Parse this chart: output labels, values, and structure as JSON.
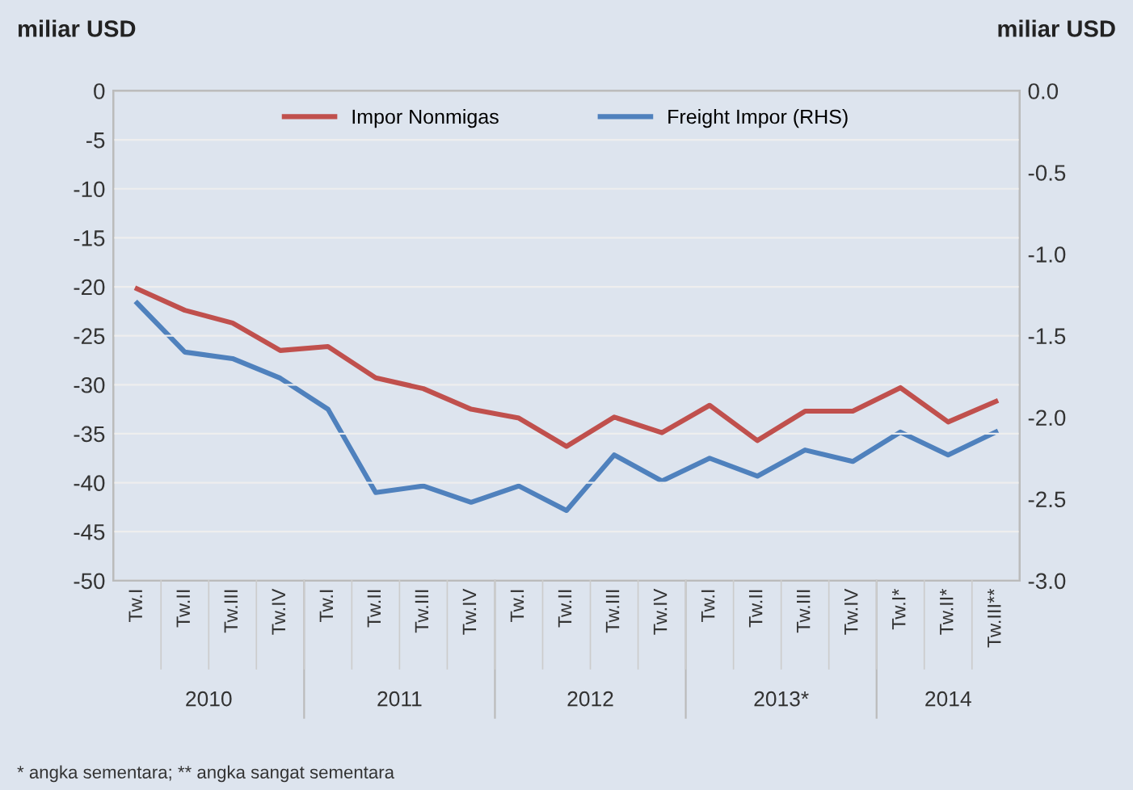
{
  "chart_data": {
    "type": "line",
    "ylabel": "miliar USD",
    "y2label": "miliar USD",
    "categories": [
      "Tw.I",
      "Tw.II",
      "Tw.III",
      "Tw.IV",
      "Tw.I",
      "Tw.II",
      "Tw.III",
      "Tw.IV",
      "Tw.I",
      "Tw.II",
      "Tw.III",
      "Tw.IV",
      "Tw.I",
      "Tw.II",
      "Tw.III",
      "Tw.IV",
      "Tw.I*",
      "Tw.II*",
      "Tw.III**"
    ],
    "series": [
      {
        "name": "Impor Nonmigas",
        "color": "#c0504d",
        "values": [
          -20.2,
          -22.4,
          -23.7,
          -26.5,
          -26.1,
          -29.3,
          -30.4,
          -32.5,
          -33.4,
          -36.3,
          -33.3,
          -34.9,
          -32.1,
          -35.7,
          -32.7,
          -32.7,
          -30.3,
          -33.8,
          -31.7
        ]
      },
      {
        "name": "Freight Impor (RHS)",
        "color": "#4f81bd",
        "axis": "y2",
        "values": [
          -1.3,
          -1.6,
          -1.64,
          -1.76,
          -1.95,
          -2.46,
          -2.42,
          -2.52,
          -2.42,
          -2.57,
          -2.23,
          -2.39,
          -2.25,
          -2.36,
          -2.2,
          -2.27,
          -2.09,
          -2.23,
          -2.09
        ]
      }
    ],
    "ylim": [
      -50,
      0
    ],
    "yticks": [
      0,
      -5,
      -10,
      -15,
      -20,
      -25,
      -30,
      -35,
      -40,
      -45,
      -50
    ],
    "y2lim": [
      -3.0,
      0.0
    ],
    "y2ticks": [
      {
        "value": 0,
        "label": "0.0"
      },
      -0.5,
      {
        "value": -1,
        "label": "-1.0"
      },
      -1.5,
      {
        "value": -2,
        "label": "-2.0"
      },
      -2.5,
      {
        "value": -3,
        "label": "-3.0"
      }
    ],
    "grid": "y",
    "legend": "top",
    "marker": "none",
    "line_style": "solid",
    "annotations": [
      "2010",
      "2011",
      "2012",
      "2013*",
      "2014",
      "* angka sementara; ** angka sangat sementara"
    ]
  }
}
